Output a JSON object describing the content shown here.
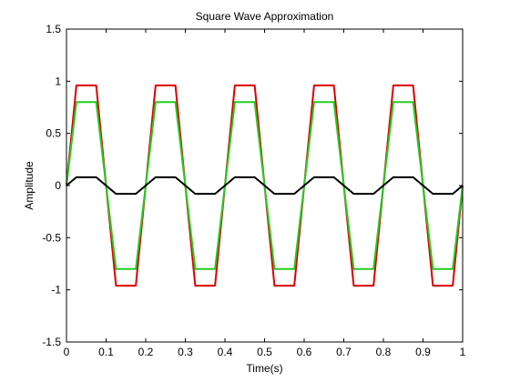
{
  "chart_data": {
    "type": "line",
    "title": "Square Wave Approximation",
    "xlabel": "Time(s)",
    "ylabel": "Amplitude",
    "xlim": [
      0,
      1
    ],
    "ylim": [
      -1.5,
      1.5
    ],
    "grid": false,
    "x_ticks": [
      "0",
      "0.1",
      "0.2",
      "0.3",
      "0.4",
      "0.5",
      "0.6",
      "0.7",
      "0.8",
      "0.9",
      "1"
    ],
    "y_ticks": [
      "1.5",
      "1",
      "0.5",
      "0",
      "-0.5",
      "-1",
      "-1.5"
    ],
    "x": [
      0,
      0.025,
      0.05,
      0.075,
      0.1,
      0.125,
      0.15,
      0.175,
      0.2,
      0.225,
      0.25,
      0.275,
      0.3,
      0.325,
      0.35,
      0.375,
      0.4,
      0.425,
      0.45,
      0.475,
      0.5,
      0.525,
      0.55,
      0.575,
      0.6,
      0.625,
      0.65,
      0.675,
      0.7,
      0.725,
      0.75,
      0.775,
      0.8,
      0.825,
      0.85,
      0.875,
      0.9,
      0.925,
      0.95,
      0.975,
      1
    ],
    "series": [
      {
        "color": "#dd0000",
        "values": [
          0,
          0.96,
          0.96,
          0.96,
          0,
          -0.96,
          -0.96,
          -0.96,
          0,
          0.96,
          0.96,
          0.96,
          0,
          -0.96,
          -0.96,
          -0.96,
          0,
          0.96,
          0.96,
          0.96,
          0,
          -0.96,
          -0.96,
          -0.96,
          0,
          0.96,
          0.96,
          0.96,
          0,
          -0.96,
          -0.96,
          -0.96,
          0,
          0.96,
          0.96,
          0.96,
          0,
          -0.96,
          -0.96,
          -0.96,
          0
        ]
      },
      {
        "color": "#22cc22",
        "values": [
          0,
          0.8,
          0.8,
          0.8,
          0,
          -0.8,
          -0.8,
          -0.8,
          0,
          0.8,
          0.8,
          0.8,
          0,
          -0.8,
          -0.8,
          -0.8,
          0,
          0.8,
          0.8,
          0.8,
          0,
          -0.8,
          -0.8,
          -0.8,
          0,
          0.8,
          0.8,
          0.8,
          0,
          -0.8,
          -0.8,
          -0.8,
          0,
          0.8,
          0.8,
          0.8,
          0,
          -0.8,
          -0.8,
          -0.8,
          0
        ]
      },
      {
        "color": "#000000",
        "values": [
          0,
          0.08,
          0.08,
          0.08,
          0,
          -0.08,
          -0.08,
          -0.08,
          0,
          0.08,
          0.08,
          0.08,
          0,
          -0.08,
          -0.08,
          -0.08,
          0,
          0.08,
          0.08,
          0.08,
          0,
          -0.08,
          -0.08,
          -0.08,
          0,
          0.08,
          0.08,
          0.08,
          0,
          -0.08,
          -0.08,
          -0.08,
          0,
          0.08,
          0.08,
          0.08,
          0,
          -0.08,
          -0.08,
          -0.08,
          0
        ]
      }
    ]
  }
}
